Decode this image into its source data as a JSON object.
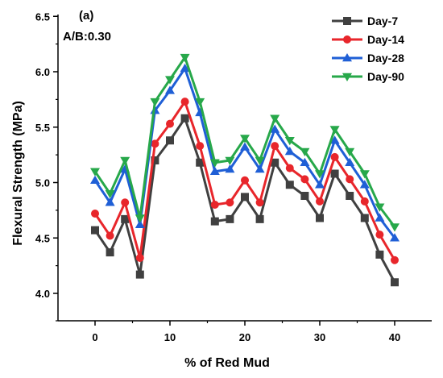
{
  "chart_data": {
    "type": "line",
    "panel_label": "(a)",
    "subtitle": "A/B:0.30",
    "xlabel": "% of Red Mud",
    "ylabel": "Flexural  Strength (MPa)",
    "xlim": [
      -4,
      43
    ],
    "ylim": [
      3.8,
      6.5
    ],
    "x_ticks": [
      0,
      10,
      20,
      30,
      40
    ],
    "y_ticks": [
      4.0,
      4.5,
      5.0,
      5.5,
      6.0,
      6.5
    ],
    "y_tick_labels": [
      "4.0",
      "4.5",
      "5.0",
      "5.5",
      "6.0",
      "6.5"
    ],
    "grid": false,
    "legend_position": "top-right",
    "x": [
      0,
      2,
      4,
      6,
      8,
      10,
      12,
      14,
      16,
      18,
      20,
      22,
      24,
      26,
      28,
      30,
      32,
      34,
      36,
      38,
      40
    ],
    "series": [
      {
        "name": "Day-7",
        "color": "#404040",
        "marker": "square",
        "values": [
          4.57,
          4.37,
          4.67,
          4.17,
          5.2,
          5.38,
          5.58,
          5.18,
          4.65,
          4.67,
          4.87,
          4.67,
          5.18,
          4.98,
          4.88,
          4.68,
          5.08,
          4.88,
          4.68,
          4.35,
          4.1
        ]
      },
      {
        "name": "Day-14",
        "color": "#e8262b",
        "marker": "circle",
        "values": [
          4.72,
          4.52,
          4.82,
          4.32,
          5.35,
          5.53,
          5.73,
          5.33,
          4.8,
          4.82,
          5.02,
          4.82,
          5.33,
          5.13,
          5.03,
          4.83,
          5.23,
          5.03,
          4.83,
          4.53,
          4.3
        ]
      },
      {
        "name": "Day-28",
        "color": "#1f5fd6",
        "marker": "triangle-up",
        "values": [
          5.02,
          4.82,
          5.12,
          4.62,
          5.65,
          5.83,
          6.03,
          5.63,
          5.1,
          5.12,
          5.32,
          5.12,
          5.48,
          5.28,
          5.18,
          4.98,
          5.38,
          5.18,
          4.98,
          4.68,
          4.5
        ]
      },
      {
        "name": "Day-90",
        "color": "#27a84a",
        "marker": "triangle-down",
        "values": [
          5.1,
          4.9,
          5.2,
          4.68,
          5.73,
          5.93,
          6.13,
          5.73,
          5.18,
          5.2,
          5.4,
          5.2,
          5.58,
          5.38,
          5.28,
          5.08,
          5.48,
          5.28,
          5.08,
          4.78,
          4.6
        ]
      }
    ]
  }
}
